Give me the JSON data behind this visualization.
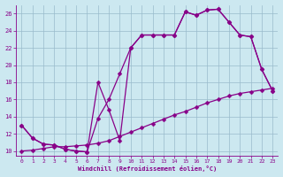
{
  "xlabel": "Windchill (Refroidissement éolien,°C)",
  "xlim": [
    -0.5,
    23.5
  ],
  "ylim": [
    9.5,
    27
  ],
  "yticks": [
    10,
    12,
    14,
    16,
    18,
    20,
    22,
    24,
    26
  ],
  "xticks": [
    0,
    1,
    2,
    3,
    4,
    5,
    6,
    7,
    8,
    9,
    10,
    11,
    12,
    13,
    14,
    15,
    16,
    17,
    18,
    19,
    20,
    21,
    22,
    23
  ],
  "bg_color": "#cce8f0",
  "line_color": "#880088",
  "grid_color": "#99bbcc",
  "c1x": [
    0,
    1,
    2,
    3,
    4,
    5,
    6,
    7,
    8,
    9,
    10,
    11,
    12,
    13,
    14,
    15,
    16,
    17,
    18,
    19,
    20,
    21,
    22,
    23
  ],
  "c1y": [
    13.0,
    11.5,
    10.8,
    10.7,
    10.2,
    10.0,
    9.9,
    18.0,
    14.8,
    11.2,
    22.0,
    23.5,
    23.5,
    23.5,
    23.5,
    26.2,
    25.8,
    26.4,
    26.5,
    25.0,
    23.5,
    23.3,
    19.5,
    17.0
  ],
  "c2x": [
    0,
    1,
    2,
    3,
    4,
    5,
    6,
    7,
    8,
    9,
    10,
    11,
    12,
    13,
    14,
    15,
    16,
    17,
    18,
    19,
    20,
    21,
    22,
    23
  ],
  "c2y": [
    13.0,
    11.5,
    10.8,
    10.7,
    10.2,
    10.0,
    9.9,
    13.8,
    16.0,
    19.0,
    22.0,
    23.5,
    23.5,
    23.5,
    23.5,
    26.2,
    25.8,
    26.4,
    26.5,
    25.0,
    23.5,
    23.3,
    19.5,
    17.0
  ],
  "c3x": [
    0,
    1,
    2,
    3,
    4,
    5,
    6,
    7,
    8,
    9,
    10,
    11,
    12,
    13,
    14,
    15,
    16,
    17,
    18,
    19,
    20,
    21,
    22,
    23
  ],
  "c3y": [
    10.0,
    10.1,
    10.3,
    10.5,
    10.5,
    10.6,
    10.7,
    10.9,
    11.2,
    11.7,
    12.2,
    12.7,
    13.2,
    13.7,
    14.2,
    14.6,
    15.1,
    15.6,
    16.0,
    16.4,
    16.7,
    16.9,
    17.1,
    17.3
  ],
  "markersize": 2.5,
  "linewidth": 0.9
}
